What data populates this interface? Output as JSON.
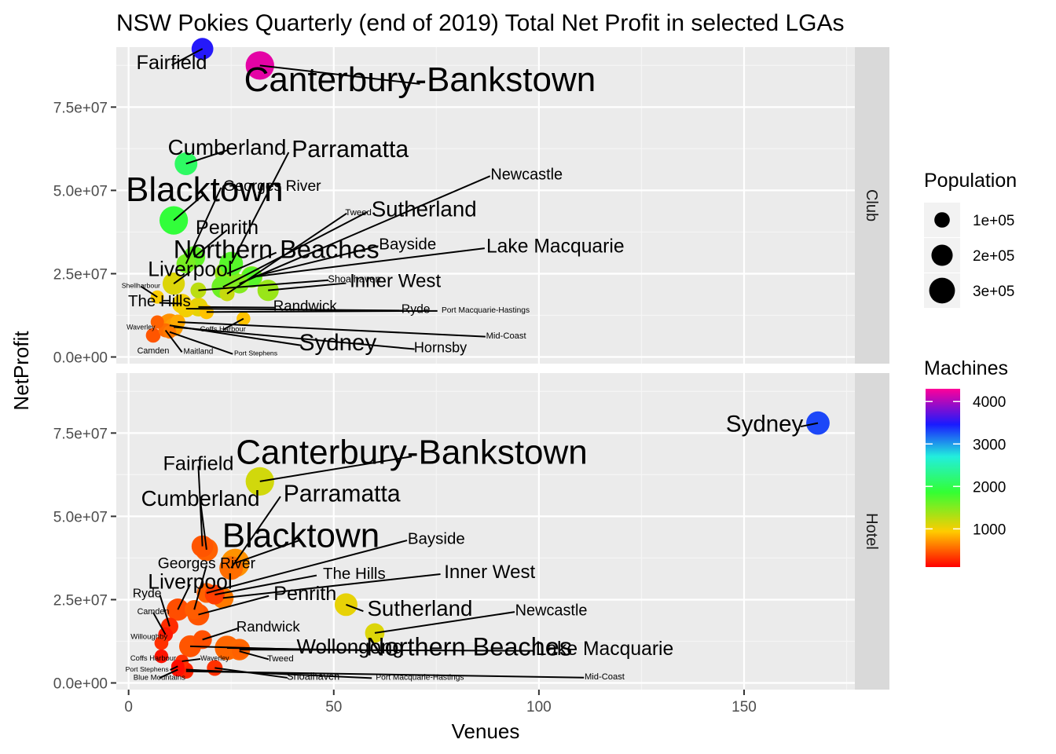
{
  "chart_data": {
    "type": "scatter",
    "title": "NSW Pokies Quarterly (end of 2019) Total Net Profit in selected LGAs",
    "xlabel": "Venues",
    "ylabel": "NetProfit",
    "xlim": [
      -3,
      177
    ],
    "ylim": [
      -2000000,
      93000000
    ],
    "x_ticks": [
      0,
      50,
      100,
      150
    ],
    "y_ticks": [
      0,
      25000000,
      50000000,
      75000000
    ],
    "y_tick_labels": [
      "0.0e+00",
      "2.5e+07",
      "5.0e+07",
      "7.5e+07"
    ],
    "grid": true,
    "legend_position": "right",
    "size_legend": {
      "title": "Population",
      "entries": [
        {
          "label": "1e+05",
          "value": 100000
        },
        {
          "label": "2e+05",
          "value": 200000
        },
        {
          "label": "3e+05",
          "value": 300000
        }
      ]
    },
    "color_legend": {
      "title": "Machines",
      "range": [
        100,
        4300
      ],
      "ticks": [
        1000,
        2000,
        3000,
        4000
      ],
      "tick_labels": [
        "1000",
        "2000",
        "3000",
        "4000"
      ]
    },
    "facets": [
      {
        "label": "Club",
        "points": [
          {
            "name": "Fairfield",
            "x": 18,
            "y": 92500000,
            "pop": 210000,
            "machines": 3500,
            "lx": 10.5,
            "ly": 88500000
          },
          {
            "name": "Canterbury-Bankstown",
            "x": 32,
            "y": 87500000,
            "pop": 370000,
            "machines": 4200,
            "lx": 71,
            "ly": 83500000
          },
          {
            "name": "Cumberland",
            "x": 14,
            "y": 58000000,
            "pop": 230000,
            "machines": 2100,
            "lx": 24,
            "ly": 63000000
          },
          {
            "name": "Parramatta",
            "x": 25,
            "y": 28000000,
            "pop": 250000,
            "machines": 1700,
            "lx": 54,
            "ly": 62500000
          },
          {
            "name": "Newcastle",
            "x": 27,
            "y": 22000000,
            "pop": 165000,
            "machines": 1500,
            "lx": 97,
            "ly": 55000000
          },
          {
            "name": "Georges River",
            "x": 14,
            "y": 28000000,
            "pop": 160000,
            "machines": 1550,
            "lx": 35,
            "ly": 51500000
          },
          {
            "name": "Blacktown",
            "x": 11,
            "y": 41000000,
            "pop": 370000,
            "machines": 1900,
            "lx": 18.5,
            "ly": 50500000
          },
          {
            "name": "Tweed",
            "x": 24,
            "y": 19000000,
            "pop": 95000,
            "machines": 1200,
            "lx": 56,
            "ly": 43500000
          },
          {
            "name": "Sutherland",
            "x": 23,
            "y": 21000000,
            "pop": 230000,
            "machines": 1600,
            "lx": 72,
            "ly": 44500000
          },
          {
            "name": "Penrith",
            "x": 16,
            "y": 30000000,
            "pop": 210000,
            "machines": 1650,
            "lx": 24,
            "ly": 39000000
          },
          {
            "name": "Bayside",
            "x": 30,
            "y": 24000000,
            "pop": 170000,
            "machines": 1700,
            "lx": 68,
            "ly": 34000000
          },
          {
            "name": "Northern Beaches",
            "x": 24,
            "y": 25000000,
            "pop": 270000,
            "machines": 1400,
            "lx": 36,
            "ly": 32500000
          },
          {
            "name": "Lake Macquarie",
            "x": 30,
            "y": 24000000,
            "pop": 205000,
            "machines": 1450,
            "lx": 104,
            "ly": 33500000
          },
          {
            "name": "Liverpool",
            "x": 11,
            "y": 22000000,
            "pop": 220000,
            "machines": 1100,
            "lx": 15,
            "ly": 26500000
          },
          {
            "name": "Inner West",
            "x": 34,
            "y": 20000000,
            "pop": 200000,
            "machines": 1400,
            "lx": 65,
            "ly": 23000000
          },
          {
            "name": "Shoalhaven",
            "x": 17,
            "y": 20000000,
            "pop": 105000,
            "machines": 1250,
            "lx": 55,
            "ly": 23500000
          },
          {
            "name": "Shellharbour",
            "x": 7,
            "y": 18000000,
            "pop": 72000,
            "machines": 950,
            "lx": 3,
            "ly": 21500000
          },
          {
            "name": "The Hills",
            "x": 13,
            "y": 16000000,
            "pop": 170000,
            "machines": 1000,
            "lx": 7.5,
            "ly": 17000000
          },
          {
            "name": "Randwick",
            "x": 17,
            "y": 15000000,
            "pop": 155000,
            "machines": 1050,
            "lx": 43,
            "ly": 15500000
          },
          {
            "name": "Ryde",
            "x": 14,
            "y": 14500000,
            "pop": 130000,
            "machines": 1000,
            "lx": 70,
            "ly": 14500000
          },
          {
            "name": "Port Macquarie-Hastings",
            "x": 19,
            "y": 13500000,
            "pop": 85000,
            "machines": 900,
            "lx": 87,
            "ly": 14200000
          },
          {
            "name": "Coffs Harbour",
            "x": 28,
            "y": 11500000,
            "pop": 78000,
            "machines": 900,
            "lx": 23,
            "ly": 8500000
          },
          {
            "name": "Waverley",
            "x": 7,
            "y": 10500000,
            "pop": 73000,
            "machines": 500,
            "lx": 3,
            "ly": 9000000
          },
          {
            "name": "Mid-Coast",
            "x": 12,
            "y": 10500000,
            "pop": 93000,
            "machines": 800,
            "lx": 92,
            "ly": 6500000
          },
          {
            "name": "Sydney",
            "x": 10,
            "y": 9500000,
            "pop": 245000,
            "machines": 700,
            "lx": 51,
            "ly": 4500000
          },
          {
            "name": "Hornsby",
            "x": 11,
            "y": 9000000,
            "pop": 150000,
            "machines": 750,
            "lx": 76,
            "ly": 3000000
          },
          {
            "name": "Camden",
            "x": 6,
            "y": 6500000,
            "pop": 90000,
            "machines": 450,
            "lx": 6,
            "ly": 2000000
          },
          {
            "name": "Maitland",
            "x": 9,
            "y": 8000000,
            "pop": 83000,
            "machines": 550,
            "lx": 17,
            "ly": 1800000
          },
          {
            "name": "Port Stephens",
            "x": 10,
            "y": 7500000,
            "pop": 72000,
            "machines": 600,
            "lx": 31,
            "ly": 1200000
          }
        ]
      },
      {
        "label": "Hotel",
        "points": [
          {
            "name": "Sydney",
            "x": 168,
            "y": 78000000,
            "pop": 245000,
            "machines": 3300,
            "lx": 155,
            "ly": 78000000
          },
          {
            "name": "Canterbury-Bankstown",
            "x": 32,
            "y": 60500000,
            "pop": 370000,
            "machines": 1150,
            "lx": 69,
            "ly": 69500000
          },
          {
            "name": "Fairfield",
            "x": 18,
            "y": 41000000,
            "pop": 210000,
            "machines": 450,
            "lx": 17,
            "ly": 66000000
          },
          {
            "name": "Parramatta",
            "x": 25,
            "y": 34500000,
            "pop": 250000,
            "machines": 550,
            "lx": 52,
            "ly": 57000000
          },
          {
            "name": "Cumberland",
            "x": 19,
            "y": 40000000,
            "pop": 230000,
            "machines": 500,
            "lx": 17.5,
            "ly": 55500000
          },
          {
            "name": "Blacktown",
            "x": 26,
            "y": 36000000,
            "pop": 370000,
            "machines": 700,
            "lx": 42,
            "ly": 44500000
          },
          {
            "name": "Bayside",
            "x": 19,
            "y": 27000000,
            "pop": 170000,
            "machines": 500,
            "lx": 75,
            "ly": 43500000
          },
          {
            "name": "Georges River",
            "x": 16,
            "y": 22000000,
            "pop": 160000,
            "machines": 480,
            "lx": 19,
            "ly": 36000000
          },
          {
            "name": "The Hills",
            "x": 21,
            "y": 26500000,
            "pop": 170000,
            "machines": 350,
            "lx": 55,
            "ly": 33000000
          },
          {
            "name": "Inner West",
            "x": 23,
            "y": 25500000,
            "pop": 200000,
            "machines": 600,
            "lx": 88,
            "ly": 33500000
          },
          {
            "name": "Liverpool",
            "x": 12,
            "y": 22000000,
            "pop": 220000,
            "machines": 420,
            "lx": 15,
            "ly": 30500000
          },
          {
            "name": "Penrith",
            "x": 17,
            "y": 20500000,
            "pop": 210000,
            "machines": 450,
            "lx": 43,
            "ly": 27000000
          },
          {
            "name": "Ryde",
            "x": 10,
            "y": 17000000,
            "pop": 130000,
            "machines": 280,
            "lx": 4.5,
            "ly": 27000000
          },
          {
            "name": "Sutherland",
            "x": 53,
            "y": 23500000,
            "pop": 230000,
            "machines": 1050,
            "lx": 71,
            "ly": 22500000
          },
          {
            "name": "Newcastle",
            "x": 60,
            "y": 15000000,
            "pop": 165000,
            "machines": 1100,
            "lx": 103,
            "ly": 22000000
          },
          {
            "name": "Camden",
            "x": 9,
            "y": 14500000,
            "pop": 90000,
            "machines": 200,
            "lx": 6,
            "ly": 21500000
          },
          {
            "name": "Randwick",
            "x": 18,
            "y": 13000000,
            "pop": 155000,
            "machines": 430,
            "lx": 34,
            "ly": 17000000
          },
          {
            "name": "Willoughby",
            "x": 8,
            "y": 12000000,
            "pop": 80000,
            "machines": 300,
            "lx": 5,
            "ly": 14000000
          },
          {
            "name": "Wollongong",
            "x": 15,
            "y": 11000000,
            "pop": 215000,
            "machines": 450,
            "lx": 54,
            "ly": 11000000
          },
          {
            "name": "Northern Beaches",
            "x": 24,
            "y": 10500000,
            "pop": 270000,
            "machines": 520,
            "lx": 83,
            "ly": 11000000
          },
          {
            "name": "Lake Macquarie",
            "x": 27,
            "y": 10000000,
            "pop": 205000,
            "machines": 530,
            "lx": 116,
            "ly": 10500000
          },
          {
            "name": "Coffs Harbour",
            "x": 8,
            "y": 8000000,
            "pop": 78000,
            "machines": 180,
            "lx": 6,
            "ly": 7500000
          },
          {
            "name": "Waverley",
            "x": 13,
            "y": 6500000,
            "pop": 73000,
            "machines": 300,
            "lx": 21,
            "ly": 7500000
          },
          {
            "name": "Tweed",
            "x": 27,
            "y": 9500000,
            "pop": 95000,
            "machines": 500,
            "lx": 37,
            "ly": 7500000
          },
          {
            "name": "Port Stephens",
            "x": 12,
            "y": 5000000,
            "pop": 72000,
            "machines": 150,
            "lx": 4.5,
            "ly": 4200000
          },
          {
            "name": "Blue Mountains",
            "x": 12,
            "y": 4000000,
            "pop": 80000,
            "machines": 170,
            "lx": 7.5,
            "ly": 1800000
          },
          {
            "name": "Shoalhaven",
            "x": 21,
            "y": 4500000,
            "pop": 105000,
            "machines": 300,
            "lx": 45,
            "ly": 2000000
          },
          {
            "name": "Port Macquarie-Hastings",
            "x": 14,
            "y": 4000000,
            "pop": 85000,
            "machines": 250,
            "lx": 71,
            "ly": 1800000
          },
          {
            "name": "Mid-Coast",
            "x": 14,
            "y": 3500000,
            "pop": 93000,
            "machines": 260,
            "lx": 116,
            "ly": 2000000
          }
        ]
      }
    ]
  }
}
